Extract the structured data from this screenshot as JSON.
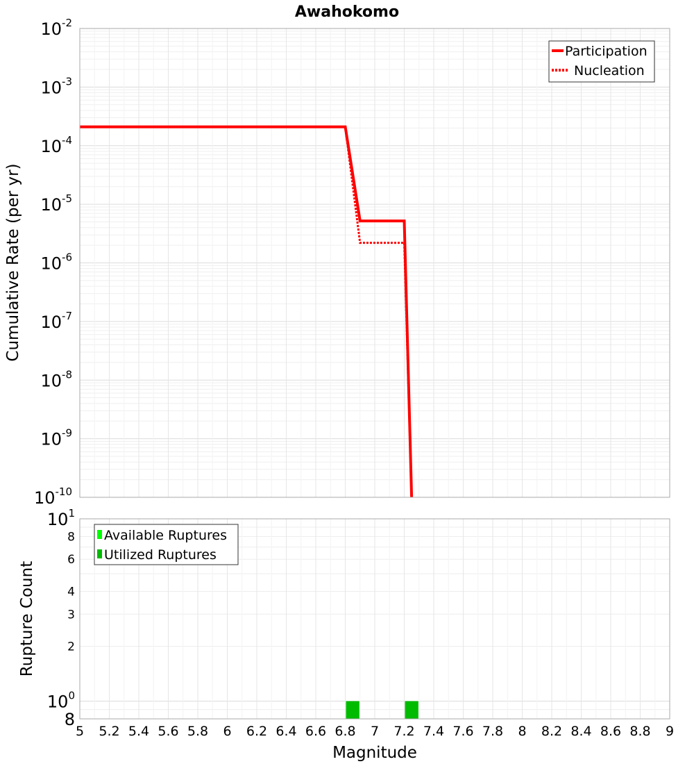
{
  "chart_data": [
    {
      "type": "line",
      "title": "Awahokomo",
      "xlabel": "",
      "ylabel": "Cumulative Rate (per yr)",
      "xlim": [
        5,
        9
      ],
      "ylim_log10": [
        -10,
        -2
      ],
      "yscale": "log",
      "grid": true,
      "legend_position": "top-right",
      "y_tick_exponents": [
        "-10",
        "-9",
        "-8",
        "-7",
        "-6",
        "-5",
        "-4",
        "-3",
        "-2"
      ],
      "series": [
        {
          "name": "Participation",
          "style": "solid",
          "color": "#ff0000",
          "x": [
            5.0,
            6.8,
            6.9,
            7.2,
            7.25
          ],
          "y": [
            0.00021,
            0.00021,
            5.2e-06,
            5.2e-06,
            1e-10
          ]
        },
        {
          "name": "Nucleation",
          "style": "dotted",
          "color": "#ff0000",
          "x": [
            5.0,
            6.8,
            6.9,
            7.2,
            7.25
          ],
          "y": [
            0.00021,
            0.00021,
            2.2e-06,
            2.2e-06,
            1e-10
          ]
        }
      ]
    },
    {
      "type": "bar",
      "xlabel": "Magnitude",
      "ylabel": "Rupture Count",
      "xlim": [
        5,
        9
      ],
      "ylim": [
        0.8,
        10
      ],
      "yscale": "log",
      "grid": true,
      "legend_position": "top-left",
      "x_tick_labels": [
        "5",
        "5.2",
        "5.4",
        "5.6",
        "5.8",
        "6",
        "6.2",
        "6.4",
        "6.6",
        "6.8",
        "7",
        "7.2",
        "7.4",
        "7.6",
        "7.8",
        "8",
        "8.2",
        "8.4",
        "8.6",
        "8.8",
        "9"
      ],
      "y_ticks": [
        {
          "value": 0.8,
          "label": "8",
          "exp": "",
          "major": false
        },
        {
          "value": 1,
          "label": "10",
          "exp": "0",
          "major": true
        },
        {
          "value": 2,
          "label": "2",
          "exp": "",
          "major": false
        },
        {
          "value": 3,
          "label": "3",
          "exp": "",
          "major": false
        },
        {
          "value": 4,
          "label": "4",
          "exp": "",
          "major": false
        },
        {
          "value": 6,
          "label": "6",
          "exp": "",
          "major": false
        },
        {
          "value": 8,
          "label": "8",
          "exp": "",
          "major": false
        },
        {
          "value": 10,
          "label": "10",
          "exp": "1",
          "major": true
        }
      ],
      "series": [
        {
          "name": "Available Ruptures",
          "color": "#00ff00",
          "bins": [
            {
              "x": 6.85,
              "width": 0.1,
              "value": 1
            },
            {
              "x": 7.25,
              "width": 0.1,
              "value": 1
            }
          ]
        },
        {
          "name": "Utilized Ruptures",
          "color": "#00bb00",
          "bins": [
            {
              "x": 6.85,
              "width": 0.1,
              "value": 1
            },
            {
              "x": 7.25,
              "width": 0.1,
              "value": 1
            }
          ]
        }
      ]
    }
  ]
}
